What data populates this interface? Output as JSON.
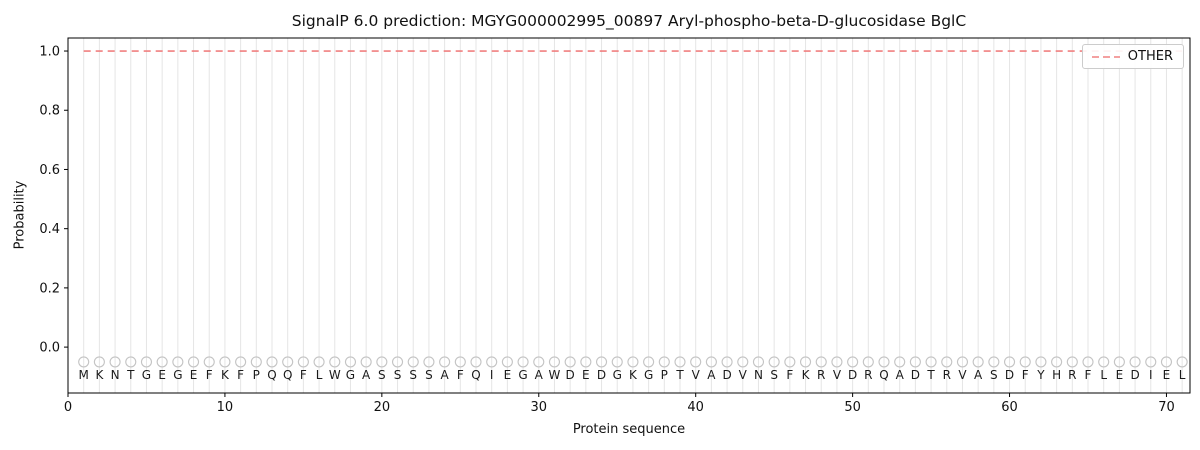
{
  "figure": {
    "title": "SignalP 6.0 prediction: MGYG000002995_00897 Aryl-phospho-beta-D-glucosidase BglC",
    "xlabel": "Protein sequence",
    "ylabel": "Probability",
    "legend": {
      "position": "upper right",
      "items": [
        {
          "label": "OTHER",
          "linestyle": "dashed",
          "color": "#f08080"
        }
      ]
    }
  },
  "chart_data": {
    "type": "line",
    "title": "SignalP 6.0 prediction: MGYG000002995_00897 Aryl-phospho-beta-D-glucosidase BglC",
    "xlabel": "Protein sequence",
    "ylabel": "Probability",
    "xlim": [
      0,
      71.5
    ],
    "ylim": [
      -0.155,
      1.044
    ],
    "xticks": [
      0,
      10,
      20,
      30,
      40,
      50,
      60,
      70
    ],
    "yticks": [
      0.0,
      0.2,
      0.4,
      0.6,
      0.8,
      1.0
    ],
    "grid": "light vertical gridline at every residue position",
    "legend_position": "upper right",
    "sequence": "MKNTGEGEFKFPQQFLWGASSSSAFQIEGAWDEDGKGPTVADVNSFKRVDRQADTRVASDFYHRFLEDIEL",
    "sequence_length": 71,
    "series": [
      {
        "name": "OTHER",
        "linestyle": "dashed",
        "color": "#f08080",
        "constant_y": 1.0,
        "x_start": 1,
        "x_end": 71,
        "note": "OTHER probability is constant at 1.0 across all residues (no signal peptide predicted)"
      }
    ],
    "residue_markers": {
      "shape": "open-circle",
      "y": -0.05,
      "radius_px": 5
    },
    "residue_letter_y": -0.095,
    "colors": {
      "grid": "#e5e5e5",
      "marker": "#c4c4c4",
      "letters": "#1a1a1a",
      "axes": "#000000",
      "tick_text": "#111111",
      "other_line": "#f08080",
      "background": "#ffffff"
    }
  }
}
